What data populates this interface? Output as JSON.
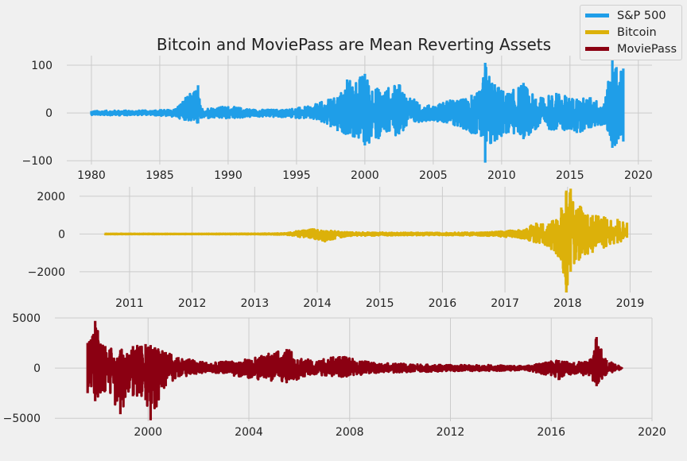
{
  "title": "Bitcoin and MoviePass are Mean Reverting Assets",
  "legend": [
    {
      "label": "S&P 500",
      "color": "#1f9ee8"
    },
    {
      "label": "Bitcoin",
      "color": "#dcb10a"
    },
    {
      "label": "MoviePass",
      "color": "#8b0012"
    }
  ],
  "chart_data": [
    {
      "type": "line",
      "name": "S&P 500",
      "color": "#1f9ee8",
      "xlim": [
        1978.2,
        2021.0
      ],
      "ylim": [
        -108,
        120
      ],
      "xticks": [
        1980,
        1985,
        1990,
        1995,
        2000,
        2005,
        2010,
        2015,
        2020
      ],
      "xtick_labels": [
        "1980",
        "1985",
        "1990",
        "1995",
        "2000",
        "2005",
        "2010",
        "2015",
        "2020"
      ],
      "yticks": [
        -100,
        0,
        100
      ],
      "ytick_labels": [
        "−100",
        "0",
        "100"
      ],
      "x": [
        1980.0,
        1982.0,
        1984.0,
        1986.0,
        1987.8,
        1988.0,
        1990.0,
        1992.0,
        1994.0,
        1996.0,
        1997.5,
        1998.0,
        1998.7,
        2000.0,
        2001.0,
        2002.5,
        2004.0,
        2005.0,
        2006.0,
        2007.0,
        2007.8,
        2008.5,
        2008.8,
        2009.5,
        2010.5,
        2011.6,
        2012.5,
        2014.0,
        2015.5,
        2016.5,
        2017.5,
        2018.1,
        2018.4,
        2018.9
      ],
      "y_high": [
        4,
        5,
        5,
        7,
        58,
        10,
        14,
        7,
        7,
        14,
        30,
        33,
        70,
        82,
        50,
        60,
        18,
        15,
        26,
        28,
        38,
        46,
        105,
        60,
        42,
        63,
        30,
        42,
        30,
        33,
        20,
        112,
        96,
        93
      ],
      "y_low": [
        -4,
        -5,
        -4,
        -8,
        -22,
        -12,
        -12,
        -8,
        -9,
        -12,
        -30,
        -38,
        -45,
        -68,
        -55,
        -45,
        -18,
        -15,
        -22,
        -30,
        -42,
        -50,
        -104,
        -60,
        -42,
        -55,
        -35,
        -35,
        -42,
        -32,
        -25,
        -73,
        -65,
        -60
      ],
      "grid": true,
      "legend": "top-right"
    },
    {
      "type": "line",
      "name": "Bitcoin",
      "color": "#dcb10a",
      "xlim": [
        2010.2,
        2019.35
      ],
      "ylim": [
        -3100,
        2500
      ],
      "xticks": [
        2011,
        2012,
        2013,
        2014,
        2015,
        2016,
        2017,
        2018,
        2019
      ],
      "xtick_labels": [
        "2011",
        "2012",
        "2013",
        "2014",
        "2015",
        "2016",
        "2017",
        "2018",
        "2019"
      ],
      "yticks": [
        -2000,
        0,
        2000
      ],
      "ytick_labels": [
        "−2000",
        "0",
        "2000"
      ],
      "x": [
        2010.6,
        2012.0,
        2013.0,
        2013.5,
        2013.9,
        2014.1,
        2014.5,
        2015.0,
        2016.0,
        2016.7,
        2017.0,
        2017.3,
        2017.5,
        2017.7,
        2017.9,
        2017.98,
        2018.05,
        2018.2,
        2018.4,
        2018.6,
        2018.8,
        2018.95
      ],
      "y_high": [
        8,
        6,
        15,
        40,
        280,
        200,
        90,
        80,
        60,
        90,
        150,
        250,
        600,
        550,
        1400,
        2300,
        2400,
        1500,
        1000,
        900,
        800,
        600
      ],
      "y_low": [
        -8,
        -6,
        -15,
        -40,
        -250,
        -400,
        -100,
        -80,
        -60,
        -90,
        -150,
        -250,
        -500,
        -650,
        -1400,
        -3100,
        -2000,
        -1300,
        -1000,
        -700,
        -500,
        -200
      ],
      "grid": true
    },
    {
      "type": "line",
      "name": "MoviePass",
      "color": "#8b0012",
      "xlim": [
        1996.3,
        2020.0
      ],
      "ylim": [
        -5300,
        5000
      ],
      "xticks": [
        2000,
        2004,
        2008,
        2012,
        2016,
        2020
      ],
      "xtick_labels": [
        "2000",
        "2004",
        "2008",
        "2012",
        "2016",
        "2020"
      ],
      "yticks": [
        -5000,
        0,
        5000
      ],
      "ytick_labels": [
        "−5000",
        "0",
        "5000"
      ],
      "x": [
        1997.6,
        1997.9,
        1998.3,
        1998.9,
        1999.4,
        1999.9,
        2000.1,
        2000.7,
        2001.2,
        2002.5,
        2004.0,
        2005.5,
        2006.5,
        2007.6,
        2009.0,
        2010.5,
        2012.0,
        2013.5,
        2015.0,
        2016.3,
        2016.9,
        2017.5,
        2017.8,
        2018.2,
        2018.8
      ],
      "y_high": [
        2500,
        4700,
        2200,
        1800,
        2200,
        2400,
        2300,
        1600,
        1100,
        500,
        900,
        1900,
        700,
        1200,
        500,
        400,
        300,
        300,
        200,
        800,
        600,
        600,
        3100,
        800,
        80
      ],
      "y_low": [
        -2500,
        -3300,
        -2300,
        -4600,
        -2800,
        -3200,
        -5200,
        -1800,
        -900,
        -400,
        -1000,
        -1500,
        -600,
        -900,
        -500,
        -400,
        -300,
        -300,
        -200,
        -1200,
        -600,
        -800,
        -1800,
        -600,
        -80
      ],
      "grid": true
    }
  ]
}
